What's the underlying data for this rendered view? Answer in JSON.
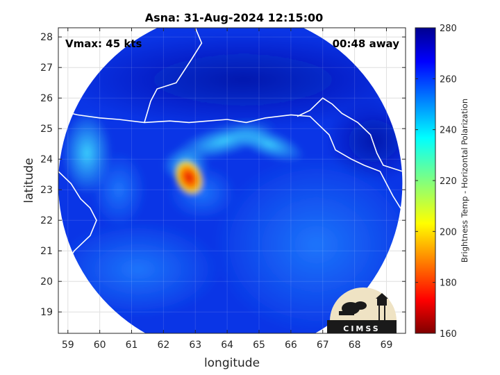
{
  "chart_data": {
    "type": "heatmap",
    "title": "Asna: 31-Aug-2024 12:15:00",
    "xlabel": "longitude",
    "ylabel": "latitude",
    "xlim": [
      58.7,
      69.6
    ],
    "ylim": [
      18.3,
      28.3
    ],
    "xticks": [
      59,
      60,
      61,
      62,
      63,
      64,
      65,
      66,
      67,
      68,
      69
    ],
    "yticks": [
      19,
      20,
      21,
      22,
      23,
      24,
      25,
      26,
      27,
      28
    ],
    "grid": true,
    "annotations": {
      "left": "Vmax: 45 kts",
      "right": "00:48 away"
    },
    "swath": {
      "center": [
        64.1,
        23.2
      ],
      "radius_deg": 5.4
    },
    "storm_center": [
      62.9,
      23.4
    ],
    "colorbar": {
      "label": "Brightness Temp - Horizontal Polarization",
      "range": [
        160,
        280
      ],
      "ticks": [
        160,
        180,
        200,
        220,
        240,
        260,
        280
      ],
      "colormap": "jet"
    },
    "background_temp": 265,
    "features": [
      {
        "name": "eyewall",
        "lon": 62.8,
        "lat": 23.4,
        "value": 192
      },
      {
        "name": "inner-band",
        "lon": 62.6,
        "lat": 23.8,
        "value": 222
      },
      {
        "name": "spiral-band-north",
        "lon": 63.9,
        "lat": 24.8,
        "value": 245
      },
      {
        "name": "coastal-band",
        "lon": 65.2,
        "lat": 24.5,
        "value": 250
      },
      {
        "name": "western-band",
        "lon": 59.6,
        "lat": 24.2,
        "value": 238
      }
    ],
    "logo": "CIMSS"
  }
}
